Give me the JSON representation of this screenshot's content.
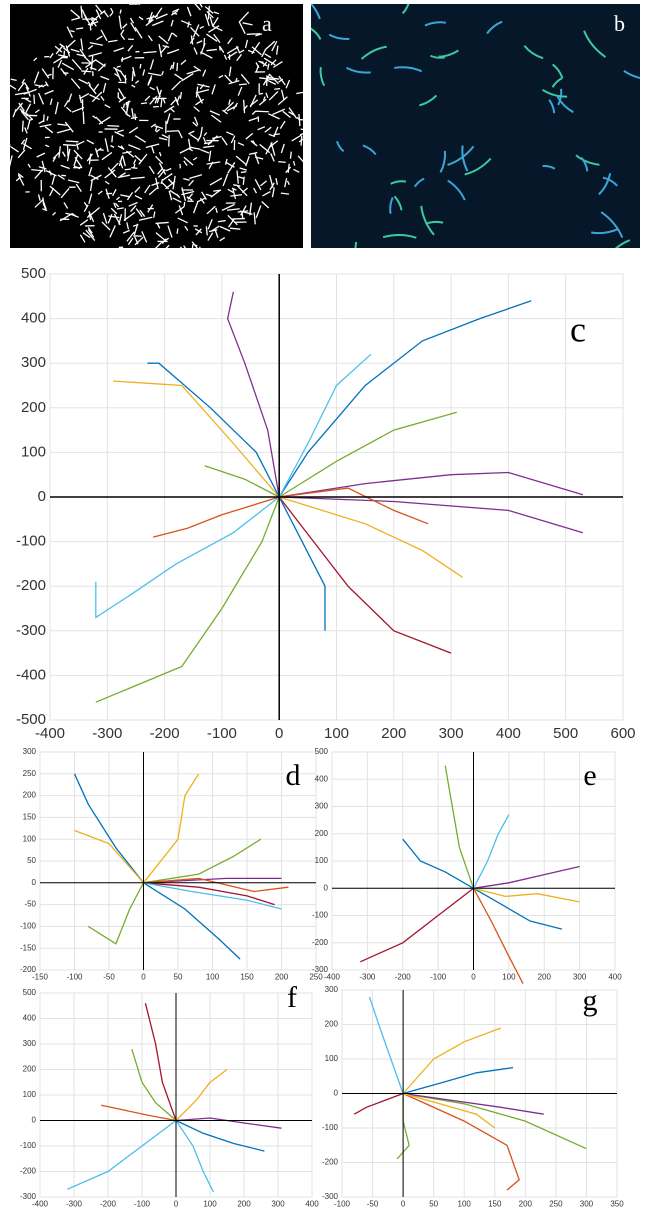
{
  "panels": {
    "a": {
      "label": "a"
    },
    "b": {
      "label": "b"
    }
  },
  "chart_data": [
    {
      "type": "line",
      "annotation": "c",
      "grid": true,
      "xlim": [
        -400,
        600
      ],
      "ylim": [
        -500,
        500
      ],
      "xticks": [
        -400,
        -300,
        -200,
        -100,
        0,
        100,
        200,
        300,
        400,
        500,
        600
      ],
      "yticks": [
        -500,
        -400,
        -300,
        -200,
        -100,
        0,
        100,
        200,
        300,
        400,
        500
      ],
      "series": [
        {
          "color": "#0072BD",
          "x": [
            0,
            50,
            150,
            250,
            350,
            440
          ],
          "values": [
            0,
            100,
            250,
            350,
            400,
            440
          ]
        },
        {
          "color": "#7E2F8E",
          "x": [
            0,
            -20,
            -60,
            -90,
            -80
          ],
          "values": [
            0,
            150,
            300,
            400,
            460
          ]
        },
        {
          "color": "#7E2F8E",
          "x": [
            0,
            150,
            300,
            400,
            530
          ],
          "values": [
            0,
            30,
            50,
            55,
            5
          ]
        },
        {
          "color": "#4DBEEE",
          "x": [
            0,
            -80,
            -180,
            -260,
            -320,
            -320
          ],
          "values": [
            0,
            -80,
            -150,
            -220,
            -270,
            -190
          ]
        },
        {
          "color": "#77AC30",
          "x": [
            0,
            -30,
            -100,
            -170,
            -320
          ],
          "values": [
            0,
            -100,
            -250,
            -380,
            -460
          ]
        },
        {
          "color": "#EDB120",
          "x": [
            0,
            -80,
            -170,
            -290
          ],
          "values": [
            0,
            120,
            250,
            260
          ]
        },
        {
          "color": "#A2142F",
          "x": [
            0,
            60,
            120,
            200,
            300
          ],
          "values": [
            0,
            -100,
            -200,
            -300,
            -350
          ]
        },
        {
          "color": "#0072BD",
          "x": [
            0,
            40,
            80,
            80
          ],
          "values": [
            0,
            -100,
            -200,
            -300
          ]
        },
        {
          "color": "#77AC30",
          "x": [
            0,
            100,
            200,
            310
          ],
          "values": [
            0,
            80,
            150,
            190
          ]
        },
        {
          "color": "#EDB120",
          "x": [
            0,
            150,
            250,
            320
          ],
          "values": [
            0,
            -60,
            -120,
            -180
          ]
        },
        {
          "color": "#D95319",
          "x": [
            0,
            -100,
            -160,
            -220
          ],
          "values": [
            0,
            -40,
            -70,
            -90
          ]
        },
        {
          "color": "#4DBEEE",
          "x": [
            0,
            50,
            100,
            160
          ],
          "values": [
            0,
            120,
            250,
            320
          ]
        },
        {
          "color": "#0072BD",
          "x": [
            0,
            -40,
            -120,
            -210,
            -230
          ],
          "values": [
            0,
            100,
            200,
            300,
            300
          ]
        },
        {
          "color": "#7E2F8E",
          "x": [
            0,
            200,
            400,
            530
          ],
          "values": [
            0,
            -10,
            -30,
            -80
          ]
        },
        {
          "color": "#D95319",
          "x": [
            0,
            120,
            200,
            260
          ],
          "values": [
            0,
            20,
            -30,
            -60
          ]
        },
        {
          "color": "#77AC30",
          "x": [
            0,
            -60,
            -130
          ],
          "values": [
            0,
            40,
            70
          ]
        }
      ]
    },
    {
      "type": "line",
      "annotation": "d",
      "grid": true,
      "xlim": [
        -150,
        250
      ],
      "ylim": [
        -200,
        300
      ],
      "xticks": [
        -150,
        -100,
        -50,
        0,
        50,
        100,
        150,
        200,
        250
      ],
      "yticks": [
        -200,
        -150,
        -100,
        -50,
        0,
        50,
        100,
        150,
        200,
        250,
        300
      ],
      "series": [
        {
          "color": "#0072BD",
          "x": [
            0,
            -40,
            -80,
            -100
          ],
          "values": [
            0,
            80,
            180,
            250
          ]
        },
        {
          "color": "#EDB120",
          "x": [
            0,
            -50,
            -100
          ],
          "values": [
            0,
            90,
            120
          ]
        },
        {
          "color": "#EDB120",
          "x": [
            0,
            50,
            60,
            80
          ],
          "values": [
            0,
            100,
            200,
            250
          ]
        },
        {
          "color": "#A2142F",
          "x": [
            0,
            80,
            150,
            190
          ],
          "values": [
            0,
            -10,
            -30,
            -50
          ]
        },
        {
          "color": "#0072BD",
          "x": [
            0,
            60,
            110,
            140
          ],
          "values": [
            0,
            -60,
            -130,
            -175
          ]
        },
        {
          "color": "#77AC30",
          "x": [
            0,
            80,
            130,
            170
          ],
          "values": [
            0,
            20,
            60,
            100
          ]
        },
        {
          "color": "#7E2F8E",
          "x": [
            0,
            60,
            120,
            200
          ],
          "values": [
            0,
            5,
            10,
            10
          ]
        },
        {
          "color": "#4DBEEE",
          "x": [
            0,
            70,
            150,
            200
          ],
          "values": [
            0,
            -20,
            -40,
            -60
          ]
        },
        {
          "color": "#77AC30",
          "x": [
            0,
            -20,
            -40,
            -80
          ],
          "values": [
            0,
            -60,
            -140,
            -100
          ]
        },
        {
          "color": "#D95319",
          "x": [
            0,
            80,
            160,
            210
          ],
          "values": [
            0,
            10,
            -20,
            -10
          ]
        }
      ]
    },
    {
      "type": "line",
      "annotation": "e",
      "grid": true,
      "xlim": [
        -400,
        400
      ],
      "ylim": [
        -300,
        500
      ],
      "xticks": [
        -400,
        -300,
        -200,
        -100,
        0,
        100,
        200,
        300,
        400
      ],
      "yticks": [
        -300,
        -200,
        -100,
        0,
        100,
        200,
        300,
        400,
        500
      ],
      "series": [
        {
          "color": "#77AC30",
          "x": [
            0,
            -40,
            -60,
            -80
          ],
          "values": [
            0,
            150,
            300,
            450
          ]
        },
        {
          "color": "#A2142F",
          "x": [
            0,
            -100,
            -200,
            -320
          ],
          "values": [
            0,
            -100,
            -200,
            -270
          ]
        },
        {
          "color": "#D95319",
          "x": [
            0,
            50,
            100,
            140
          ],
          "values": [
            0,
            -120,
            -250,
            -350
          ]
        },
        {
          "color": "#4DBEEE",
          "x": [
            0,
            40,
            70,
            100
          ],
          "values": [
            0,
            100,
            200,
            270
          ]
        },
        {
          "color": "#7E2F8E",
          "x": [
            0,
            100,
            200,
            300
          ],
          "values": [
            0,
            20,
            50,
            80
          ]
        },
        {
          "color": "#0072BD",
          "x": [
            0,
            80,
            160,
            250
          ],
          "values": [
            0,
            -60,
            -120,
            -150
          ]
        },
        {
          "color": "#EDB120",
          "x": [
            0,
            90,
            180,
            300
          ],
          "values": [
            0,
            -30,
            -20,
            -50
          ]
        },
        {
          "color": "#0072BD",
          "x": [
            0,
            -80,
            -150,
            -200
          ],
          "values": [
            0,
            60,
            100,
            180
          ]
        }
      ]
    },
    {
      "type": "line",
      "annotation": "f",
      "grid": true,
      "xlim": [
        -400,
        400
      ],
      "ylim": [
        -300,
        500
      ],
      "xticks": [
        -400,
        -300,
        -200,
        -100,
        0,
        100,
        200,
        300,
        400
      ],
      "yticks": [
        -300,
        -200,
        -100,
        0,
        100,
        200,
        300,
        400,
        500
      ],
      "series": [
        {
          "color": "#A2142F",
          "x": [
            0,
            -40,
            -60,
            -90
          ],
          "values": [
            0,
            150,
            300,
            460
          ]
        },
        {
          "color": "#4DBEEE",
          "x": [
            0,
            -100,
            -200,
            -320
          ],
          "values": [
            0,
            -100,
            -200,
            -270
          ]
        },
        {
          "color": "#4DBEEE",
          "x": [
            0,
            50,
            80,
            110
          ],
          "values": [
            0,
            -100,
            -200,
            -280
          ]
        },
        {
          "color": "#EDB120",
          "x": [
            0,
            60,
            100,
            150
          ],
          "values": [
            0,
            80,
            150,
            200
          ]
        },
        {
          "color": "#7E2F8E",
          "x": [
            0,
            100,
            200,
            310
          ],
          "values": [
            0,
            10,
            -10,
            -30
          ]
        },
        {
          "color": "#77AC30",
          "x": [
            0,
            -60,
            -100,
            -130
          ],
          "values": [
            0,
            70,
            150,
            280
          ]
        },
        {
          "color": "#0072BD",
          "x": [
            0,
            80,
            170,
            260
          ],
          "values": [
            0,
            -50,
            -90,
            -120
          ]
        },
        {
          "color": "#D95319",
          "x": [
            0,
            -80,
            -150,
            -220
          ],
          "values": [
            0,
            20,
            40,
            60
          ]
        }
      ]
    },
    {
      "type": "line",
      "annotation": "g",
      "grid": true,
      "xlim": [
        -100,
        350
      ],
      "ylim": [
        -300,
        300
      ],
      "xticks": [
        -100,
        -50,
        0,
        50,
        100,
        150,
        200,
        250,
        300,
        350
      ],
      "yticks": [
        -300,
        -200,
        -100,
        0,
        100,
        200,
        300
      ],
      "series": [
        {
          "color": "#4DBEEE",
          "x": [
            0,
            -20,
            -40,
            -55
          ],
          "values": [
            0,
            100,
            200,
            280
          ]
        },
        {
          "color": "#EDB120",
          "x": [
            0,
            50,
            100,
            160
          ],
          "values": [
            0,
            100,
            150,
            190
          ]
        },
        {
          "color": "#D95319",
          "x": [
            0,
            100,
            170,
            190,
            170
          ],
          "values": [
            0,
            -80,
            -150,
            -250,
            -280
          ]
        },
        {
          "color": "#77AC30",
          "x": [
            0,
            100,
            200,
            300
          ],
          "values": [
            0,
            -30,
            -80,
            -160
          ]
        },
        {
          "color": "#0072BD",
          "x": [
            0,
            60,
            120,
            180
          ],
          "values": [
            0,
            30,
            60,
            75
          ]
        },
        {
          "color": "#7E2F8E",
          "x": [
            0,
            80,
            160,
            230
          ],
          "values": [
            0,
            -20,
            -40,
            -60
          ]
        },
        {
          "color": "#A2142F",
          "x": [
            0,
            -30,
            -60,
            -80
          ],
          "values": [
            0,
            -20,
            -40,
            -60
          ]
        },
        {
          "color": "#77AC30",
          "x": [
            0,
            0,
            10,
            -10
          ],
          "values": [
            0,
            -80,
            -150,
            -190
          ]
        },
        {
          "color": "#EDB120",
          "x": [
            0,
            60,
            120,
            150
          ],
          "values": [
            0,
            -30,
            -60,
            -100
          ]
        }
      ]
    }
  ]
}
